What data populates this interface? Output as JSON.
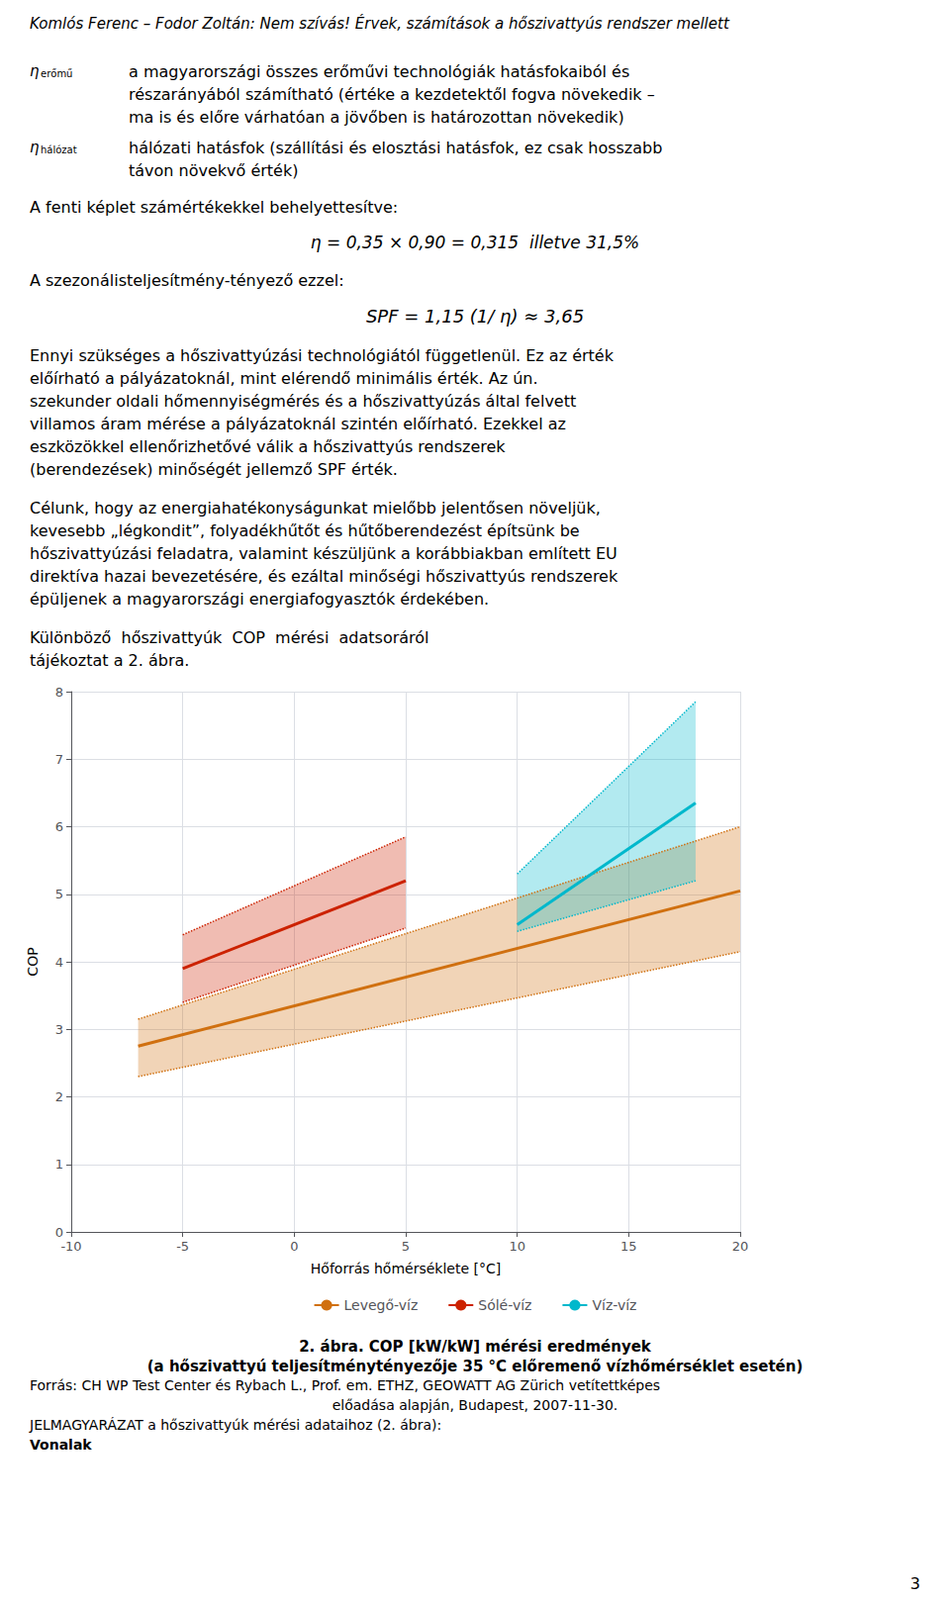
{
  "page": {
    "header": "Komlós Ferenc – Fodor Zoltán: Nem szívás! Érvek, számítások a hőszivattyús rendszer mellett",
    "definitions": [
      {
        "symbol": "η",
        "subscript": "erőmű",
        "text": [
          "a magyarországi összes erőművi technológiák hatásfokaiból és",
          "részarányából számítható (értéke a kezdetektől fogva növekedik –",
          "ma is és előre várhatóan a jövőben is határozottan növekedik)"
        ]
      },
      {
        "symbol": "η",
        "subscript": "hálózat",
        "text": [
          "hálózati hatásfok (szállítási és elosztási hatásfok, ez csak hosszabb",
          "távon növekvő érték)"
        ]
      }
    ],
    "formula_intro": "A fenti képlet számértékekkel behelyettesítve:",
    "formula1": "η = 0,35 × 0,90 = 0,315  illetve 31,5%",
    "spf_intro": "A szezonálisteljesítmény-tényező ezzel:",
    "formula2": "SPF = 1,15 (1/ η) ≈ 3,65",
    "paragraphs": [
      [
        "Ennyi szükséges a hőszivattyúzási technológiától függetlenül. Ez az érték",
        "előírható a pályázatoknál, mint elérendő minimális érték. Az ún.",
        "szekunder oldali hőmennyiségmérés és a hőszivattyúzás által felvett",
        "villamos áram mérése a pályázatoknál szintén előírható. Ezekkel az",
        "eszközökkel ellenőrizhetővé válik a hőszivattyús rendszerek",
        "(berendezések) minőségét jellemző SPF érték."
      ],
      [
        "Célunk, hogy az energiahatékonyságunkat mielőbb jelentősen növeljük,",
        "kevesebb „légkondit”, folyadékhűtőt és hűtőberendezést építsünk be",
        "hőszivattyúzási feladatra, valamint készüljünk a korábbiakban említett EU",
        "direktíva hazai bevezetésére, és ezáltal minőségi hőszivattyús rendszerek",
        "épüljenek a magyarországi energiafogyasztók érdekében."
      ]
    ],
    "figure_reference": [
      "Különböző  hőszivattyúk  COP  mérési  adatsoráról",
      "tájékoztat a 2. ábra."
    ],
    "captions": [
      "2. ábra. COP [kW/kW] mérési eredmények",
      "(a hőszivattyú teljesítménytényezője 35 °C előremenő vízhőmérséklet esetén)",
      "Forrás: CH WP Test Center és Rybach L., Prof. em. ETHZ, GEOWATT AG Zürich vetítettképes",
      "előadása alapján, Budapest, 2007-11-30.",
      "JELMAGYARÁZAT a hőszivattyúk mérési adataihoz (2. ábra):",
      "Vonalak"
    ],
    "page_number": "3"
  },
  "chart_data": {
    "type": "line",
    "xlabel": "Hőforrás hőmérséklete [°C]",
    "ylabel": "COP",
    "xlim": [
      -10,
      20
    ],
    "ylim": [
      0,
      8
    ],
    "xticks": [
      -10,
      -5,
      0,
      5,
      10,
      15,
      20
    ],
    "yticks": [
      0,
      1,
      2,
      3,
      4,
      5,
      6,
      7,
      8
    ],
    "grid": true,
    "legend": "bottom",
    "series": [
      {
        "name": "Levegő-víz",
        "color": "#d07010",
        "x": [
          -7,
          20
        ],
        "values": [
          2.75,
          5.05
        ],
        "upper": [
          3.15,
          6.0
        ],
        "lower": [
          2.3,
          4.15
        ]
      },
      {
        "name": "Sólé-víz",
        "color": "#cc2200",
        "x": [
          -5,
          5
        ],
        "values": [
          3.9,
          5.2
        ],
        "upper": [
          4.4,
          5.85
        ],
        "lower": [
          3.4,
          4.5
        ]
      },
      {
        "name": "Víz-víz",
        "color": "#00b8cc",
        "x": [
          10,
          18
        ],
        "values": [
          4.55,
          6.35
        ],
        "upper": [
          5.3,
          7.85
        ],
        "lower": [
          4.45,
          5.2
        ]
      }
    ]
  }
}
